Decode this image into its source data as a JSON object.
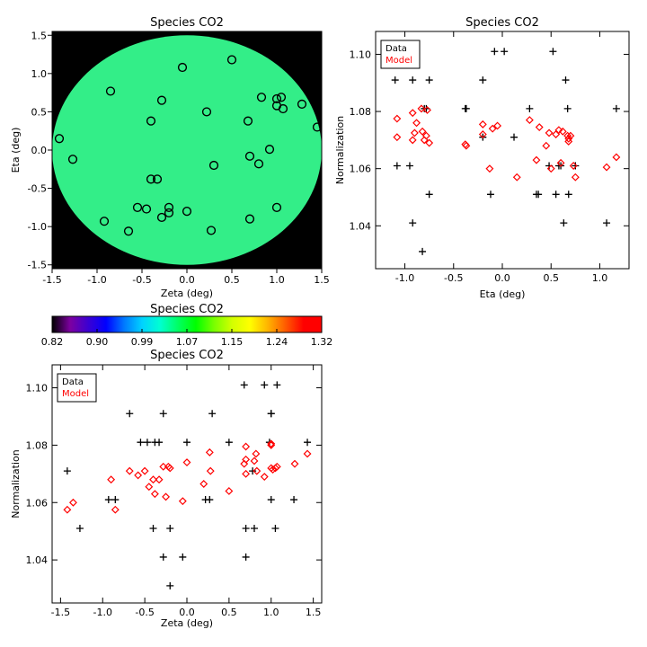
{
  "chart_data": [
    {
      "type": "scatter",
      "title": "Species CO2",
      "xlabel": "Zeta (deg)",
      "ylabel": "Eta (deg)",
      "xlim": [
        -1.5,
        1.5
      ],
      "ylim": [
        -1.55,
        1.55
      ],
      "xticks": [
        "-1.5",
        "-1.0",
        "-0.5",
        "0.0",
        "0.5",
        "1.0",
        "1.5"
      ],
      "yticks": [
        "-1.5",
        "-1.0",
        "-0.5",
        "0.0",
        "0.5",
        "1.0",
        "1.5"
      ],
      "background_color": "#000000",
      "disk_radius": 1.5,
      "disk_value": 1.07,
      "disk_color": "#33ee88",
      "points": [
        {
          "x": 0.5,
          "y": 1.18
        },
        {
          "x": -0.05,
          "y": 1.08
        },
        {
          "x": -0.85,
          "y": 0.77
        },
        {
          "x": -0.28,
          "y": 0.65
        },
        {
          "x": 0.83,
          "y": 0.69
        },
        {
          "x": 1.0,
          "y": 0.67
        },
        {
          "x": 1.05,
          "y": 0.69
        },
        {
          "x": 1.0,
          "y": 0.58
        },
        {
          "x": 1.07,
          "y": 0.54
        },
        {
          "x": 1.28,
          "y": 0.6
        },
        {
          "x": 0.22,
          "y": 0.5
        },
        {
          "x": 0.68,
          "y": 0.38
        },
        {
          "x": -0.4,
          "y": 0.38
        },
        {
          "x": 1.45,
          "y": 0.3
        },
        {
          "x": -1.42,
          "y": 0.15
        },
        {
          "x": -1.27,
          "y": -0.12
        },
        {
          "x": 0.92,
          "y": 0.01
        },
        {
          "x": 0.7,
          "y": -0.08
        },
        {
          "x": 0.8,
          "y": -0.18
        },
        {
          "x": 0.3,
          "y": -0.2
        },
        {
          "x": -0.4,
          "y": -0.38
        },
        {
          "x": -0.33,
          "y": -0.38
        },
        {
          "x": -0.55,
          "y": -0.75
        },
        {
          "x": -0.45,
          "y": -0.77
        },
        {
          "x": -0.2,
          "y": -0.75
        },
        {
          "x": -0.2,
          "y": -0.82
        },
        {
          "x": 0.0,
          "y": -0.8
        },
        {
          "x": 1.0,
          "y": -0.75
        },
        {
          "x": -0.92,
          "y": -0.93
        },
        {
          "x": -0.28,
          "y": -0.88
        },
        {
          "x": 0.7,
          "y": -0.9
        },
        {
          "x": -0.65,
          "y": -1.06
        },
        {
          "x": 0.27,
          "y": -1.05
        }
      ]
    },
    {
      "type": "scatter",
      "title": "Species CO2",
      "xlabel": "Eta (deg)",
      "ylabel": "Normalization",
      "xlim": [
        -1.3,
        1.3
      ],
      "ylim": [
        1.025,
        1.108
      ],
      "xticks": [
        -1.0,
        -0.5,
        0.0,
        0.5,
        1.0
      ],
      "yticks": [
        1.04,
        1.06,
        1.08,
        1.1
      ],
      "xtick_labels": [
        "-1.0",
        "-0.5",
        "0.0",
        "0.5",
        "1.0"
      ],
      "ytick_labels": [
        "1.04",
        "1.06",
        "1.08",
        "1.10"
      ],
      "legend": {
        "position": "top-left",
        "entries": [
          "Data",
          "Model"
        ],
        "colors": [
          "#000000",
          "#ff0000"
        ]
      },
      "series": [
        {
          "name": "Data",
          "marker": "plus",
          "color": "#000000",
          "points": [
            {
              "x": -0.08,
              "y": 1.101
            },
            {
              "x": 0.02,
              "y": 1.101
            },
            {
              "x": 0.52,
              "y": 1.101
            },
            {
              "x": -1.1,
              "y": 1.091
            },
            {
              "x": -0.92,
              "y": 1.091
            },
            {
              "x": -0.75,
              "y": 1.091
            },
            {
              "x": -0.2,
              "y": 1.091
            },
            {
              "x": 0.65,
              "y": 1.091
            },
            {
              "x": -0.8,
              "y": 1.081
            },
            {
              "x": -0.78,
              "y": 1.081
            },
            {
              "x": -0.38,
              "y": 1.081
            },
            {
              "x": -0.37,
              "y": 1.081
            },
            {
              "x": 0.28,
              "y": 1.081
            },
            {
              "x": 0.67,
              "y": 1.081
            },
            {
              "x": 1.17,
              "y": 1.081
            },
            {
              "x": -0.2,
              "y": 1.071
            },
            {
              "x": 0.12,
              "y": 1.071
            },
            {
              "x": -1.08,
              "y": 1.061
            },
            {
              "x": -0.95,
              "y": 1.061
            },
            {
              "x": 0.48,
              "y": 1.061
            },
            {
              "x": 0.58,
              "y": 1.061
            },
            {
              "x": 0.6,
              "y": 1.061
            },
            {
              "x": 0.75,
              "y": 1.061
            },
            {
              "x": -0.75,
              "y": 1.051
            },
            {
              "x": -0.12,
              "y": 1.051
            },
            {
              "x": 0.35,
              "y": 1.051
            },
            {
              "x": 0.37,
              "y": 1.051
            },
            {
              "x": 0.55,
              "y": 1.051
            },
            {
              "x": 0.68,
              "y": 1.051
            },
            {
              "x": -0.92,
              "y": 1.041
            },
            {
              "x": 0.63,
              "y": 1.041
            },
            {
              "x": 1.07,
              "y": 1.041
            },
            {
              "x": -0.82,
              "y": 1.031
            }
          ]
        },
        {
          "name": "Model",
          "marker": "diamond",
          "color": "#ff0000",
          "points": [
            {
              "x": -0.92,
              "y": 1.0795
            },
            {
              "x": -0.77,
              "y": 1.0805
            },
            {
              "x": -0.83,
              "y": 1.081
            },
            {
              "x": -1.08,
              "y": 1.0775
            },
            {
              "x": -0.88,
              "y": 1.076
            },
            {
              "x": -0.82,
              "y": 1.073
            },
            {
              "x": -0.9,
              "y": 1.0725
            },
            {
              "x": -0.78,
              "y": 1.0715
            },
            {
              "x": -0.8,
              "y": 1.07
            },
            {
              "x": -1.08,
              "y": 1.071
            },
            {
              "x": -0.92,
              "y": 1.07
            },
            {
              "x": -0.75,
              "y": 1.069
            },
            {
              "x": -0.38,
              "y": 1.0685
            },
            {
              "x": -0.37,
              "y": 1.068
            },
            {
              "x": -0.2,
              "y": 1.0755
            },
            {
              "x": -0.1,
              "y": 1.074
            },
            {
              "x": -0.05,
              "y": 1.075
            },
            {
              "x": -0.2,
              "y": 1.072
            },
            {
              "x": -0.13,
              "y": 1.06
            },
            {
              "x": 0.15,
              "y": 1.057
            },
            {
              "x": 0.28,
              "y": 1.077
            },
            {
              "x": 0.38,
              "y": 1.0745
            },
            {
              "x": 0.35,
              "y": 1.063
            },
            {
              "x": 0.48,
              "y": 1.0725
            },
            {
              "x": 0.55,
              "y": 1.072
            },
            {
              "x": 0.58,
              "y": 1.0735
            },
            {
              "x": 0.62,
              "y": 1.073
            },
            {
              "x": 0.45,
              "y": 1.068
            },
            {
              "x": 0.5,
              "y": 1.06
            },
            {
              "x": 0.6,
              "y": 1.062
            },
            {
              "x": 0.67,
              "y": 1.0715
            },
            {
              "x": 0.68,
              "y": 1.0705
            },
            {
              "x": 0.7,
              "y": 1.0715
            },
            {
              "x": 0.68,
              "y": 1.0695
            },
            {
              "x": 0.73,
              "y": 1.061
            },
            {
              "x": 0.75,
              "y": 1.057
            },
            {
              "x": 1.07,
              "y": 1.0605
            },
            {
              "x": 1.17,
              "y": 1.064
            }
          ]
        }
      ]
    },
    {
      "type": "heatmap",
      "title": "Species CO2",
      "colorbar": true,
      "range": [
        0.82,
        1.32
      ],
      "tick_labels": [
        "0.82",
        "0.90",
        "0.99",
        "1.07",
        "1.15",
        "1.24",
        "1.32"
      ],
      "colormap": [
        "#000000",
        "#7d00a0",
        "#3c00d2",
        "#0000ff",
        "#0078ff",
        "#00d2ff",
        "#00ffd2",
        "#00ff64",
        "#00ff00",
        "#78ff00",
        "#d2ff00",
        "#ffff00",
        "#ffb400",
        "#ff5a00",
        "#ff0000",
        "#ff0000"
      ]
    },
    {
      "type": "scatter",
      "title": "Species CO2",
      "xlabel": "Zeta (deg)",
      "ylabel": "Normalization",
      "xlim": [
        -1.6,
        1.6
      ],
      "ylim": [
        1.025,
        1.108
      ],
      "xticks": [
        -1.5,
        -1.0,
        -0.5,
        0.0,
        0.5,
        1.0,
        1.5
      ],
      "yticks": [
        1.04,
        1.06,
        1.08,
        1.1
      ],
      "xtick_labels": [
        "-1.5",
        "-1.0",
        "-0.5",
        "0.0",
        "0.5",
        "1.0",
        "1.5"
      ],
      "ytick_labels": [
        "1.04",
        "1.06",
        "1.08",
        "1.10"
      ],
      "legend": {
        "position": "top-left",
        "entries": [
          "Data",
          "Model"
        ],
        "colors": [
          "#000000",
          "#ff0000"
        ]
      },
      "series": [
        {
          "name": "Data",
          "marker": "plus",
          "color": "#000000",
          "points": [
            {
              "x": 0.68,
              "y": 1.101
            },
            {
              "x": 0.92,
              "y": 1.101
            },
            {
              "x": 1.07,
              "y": 1.101
            },
            {
              "x": -0.68,
              "y": 1.091
            },
            {
              "x": -0.28,
              "y": 1.091
            },
            {
              "x": 0.3,
              "y": 1.091
            },
            {
              "x": 1.0,
              "y": 1.091
            },
            {
              "x": 1.0,
              "y": 1.091
            },
            {
              "x": -1.42,
              "y": 1.071
            },
            {
              "x": 0.78,
              "y": 1.071
            },
            {
              "x": -0.55,
              "y": 1.081
            },
            {
              "x": -0.47,
              "y": 1.081
            },
            {
              "x": -0.38,
              "y": 1.081
            },
            {
              "x": -0.33,
              "y": 1.081
            },
            {
              "x": 0.0,
              "y": 1.081
            },
            {
              "x": 0.5,
              "y": 1.081
            },
            {
              "x": 0.98,
              "y": 1.081
            },
            {
              "x": 1.43,
              "y": 1.081
            },
            {
              "x": -0.93,
              "y": 1.061
            },
            {
              "x": -0.85,
              "y": 1.061
            },
            {
              "x": 0.22,
              "y": 1.061
            },
            {
              "x": 0.27,
              "y": 1.061
            },
            {
              "x": 1.0,
              "y": 1.061
            },
            {
              "x": 1.27,
              "y": 1.061
            },
            {
              "x": -1.27,
              "y": 1.051
            },
            {
              "x": -0.4,
              "y": 1.051
            },
            {
              "x": -0.2,
              "y": 1.051
            },
            {
              "x": 0.7,
              "y": 1.051
            },
            {
              "x": 0.8,
              "y": 1.051
            },
            {
              "x": 1.05,
              "y": 1.051
            },
            {
              "x": -0.28,
              "y": 1.041
            },
            {
              "x": -0.05,
              "y": 1.041
            },
            {
              "x": 0.7,
              "y": 1.041
            },
            {
              "x": -0.2,
              "y": 1.031
            }
          ]
        },
        {
          "name": "Model",
          "marker": "diamond",
          "color": "#ff0000",
          "points": [
            {
              "x": -1.42,
              "y": 1.0575
            },
            {
              "x": -1.35,
              "y": 1.06
            },
            {
              "x": -0.9,
              "y": 1.068
            },
            {
              "x": -0.85,
              "y": 1.0575
            },
            {
              "x": -0.68,
              "y": 1.071
            },
            {
              "x": -0.58,
              "y": 1.0695
            },
            {
              "x": -0.5,
              "y": 1.071
            },
            {
              "x": -0.45,
              "y": 1.0655
            },
            {
              "x": -0.38,
              "y": 1.063
            },
            {
              "x": -0.4,
              "y": 1.068
            },
            {
              "x": -0.33,
              "y": 1.068
            },
            {
              "x": -0.28,
              "y": 1.0725
            },
            {
              "x": -0.25,
              "y": 1.062
            },
            {
              "x": -0.22,
              "y": 1.0725
            },
            {
              "x": -0.2,
              "y": 1.072
            },
            {
              "x": -0.05,
              "y": 1.0605
            },
            {
              "x": 0.0,
              "y": 1.074
            },
            {
              "x": 0.2,
              "y": 1.0665
            },
            {
              "x": 0.27,
              "y": 1.0775
            },
            {
              "x": 0.28,
              "y": 1.071
            },
            {
              "x": 0.5,
              "y": 1.064
            },
            {
              "x": 0.68,
              "y": 1.0735
            },
            {
              "x": 0.7,
              "y": 1.075
            },
            {
              "x": 0.7,
              "y": 1.07
            },
            {
              "x": 0.7,
              "y": 1.0795
            },
            {
              "x": 0.8,
              "y": 1.0745
            },
            {
              "x": 0.82,
              "y": 1.077
            },
            {
              "x": 0.83,
              "y": 1.071
            },
            {
              "x": 0.92,
              "y": 1.069
            },
            {
              "x": 1.0,
              "y": 1.0805
            },
            {
              "x": 1.0,
              "y": 1.072
            },
            {
              "x": 1.02,
              "y": 1.0715
            },
            {
              "x": 1.05,
              "y": 1.072
            },
            {
              "x": 1.07,
              "y": 1.0725
            },
            {
              "x": 1.0,
              "y": 1.08
            },
            {
              "x": 1.28,
              "y": 1.0735
            },
            {
              "x": 1.43,
              "y": 1.077
            }
          ]
        }
      ]
    }
  ]
}
